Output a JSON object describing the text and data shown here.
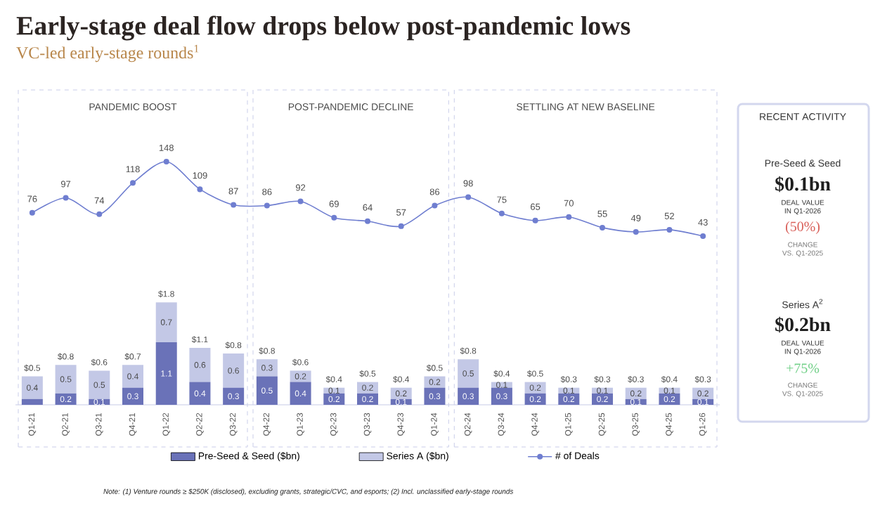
{
  "chart_data": [
    {
      "type": "other",
      "title": "Early-stage deal flow drops below post-pandemic lows",
      "subtitle": "VC-led early-stage rounds$^{1}$"
    },
    {
      "type": "bar",
      "categories": [
        "Q1-21",
        "Q2-21",
        "Q3-21",
        "Q4-21",
        "Q1-22",
        "Q2-22",
        "Q3-22",
        "Q4-22",
        "Q1-23",
        "Q2-23",
        "Q3-23",
        "Q4-23",
        "Q1-24",
        "Q2-24",
        "Q3-24",
        "Q4-24",
        "Q1-25",
        "Q2-25",
        "Q3-25",
        "Q4-25",
        "Q1-26"
      ],
      "stacked": true,
      "series": [
        {
          "name": "Pre-Seed & Seed ($bn)",
          "color": "#6a72b8",
          "values": [
            0.1,
            0.2,
            0.1,
            0.3,
            1.1,
            0.4,
            0.3,
            0.5,
            0.4,
            0.2,
            0.2,
            0.1,
            0.3,
            0.3,
            0.3,
            0.2,
            0.2,
            0.2,
            0.1,
            0.2,
            0.1
          ],
          "value_labels": [
            null,
            "0.2",
            "0.1",
            "0.3",
            "1.1",
            "0.4",
            "0.3",
            "0.5",
            "0.4",
            "0.2",
            "0.2",
            "0.1",
            "0.3",
            "0.3",
            "0.3",
            "0.2",
            "0.2",
            "0.2",
            "0.1",
            "0.2",
            "0.1"
          ]
        },
        {
          "name": "Series A ($bn)",
          "color": "#c3c8e6",
          "values": [
            0.4,
            0.5,
            0.5,
            0.4,
            0.7,
            0.6,
            0.6,
            0.3,
            0.2,
            0.1,
            0.2,
            0.2,
            0.2,
            0.5,
            0.1,
            0.2,
            0.1,
            0.1,
            0.2,
            0.1,
            0.2
          ],
          "value_labels": [
            "0.4",
            "0.5",
            "0.5",
            "0.4",
            "0.7",
            "0.6",
            "0.6",
            "0.3",
            "0.2",
            "0.1",
            "0.2",
            "0.2",
            "0.2",
            "0.5",
            "0.1",
            "0.2",
            "0.1",
            "0.1",
            "0.2",
            "0.1",
            "0.2"
          ]
        }
      ],
      "totals": [
        "$0.5",
        "$0.8",
        "$0.6",
        "$0.7",
        "$1.8",
        "$1.1",
        "$0.8",
        "$0.8",
        "$0.6",
        "$0.4",
        "$0.5",
        "$0.4",
        "$0.5",
        "$0.8",
        "$0.4",
        "$0.5",
        "$0.3",
        "$0.3",
        "$0.3",
        "$0.4",
        "$0.3"
      ],
      "tick_labels": "x",
      "legend": "bottom",
      "annotations": [
        "PANDEMIC BOOST",
        "POST-PANDEMIC DECLINE",
        "SETTLING AT NEW BASELINE",
        "Note: (1) Venture rounds ≥ $250K (disclosed), excluding grants, strategic/CVC, and esports; (2) Incl. unclassified early-stage rounds"
      ]
    },
    {
      "type": "line",
      "categories": [
        null,
        null,
        null,
        null,
        null,
        null,
        null,
        null,
        null,
        null,
        null,
        null,
        null,
        null,
        null,
        null,
        null,
        null,
        null,
        null,
        null
      ],
      "series": [
        {
          "name": "# of Deals",
          "color": "#6f7ed0",
          "values": [
            76,
            97,
            74,
            118,
            148,
            109,
            87,
            86,
            92,
            69,
            64,
            57,
            86,
            98,
            75,
            65,
            70,
            55,
            49,
            52,
            43
          ]
        }
      ],
      "data_labels": true,
      "tick_labels": false,
      "legend": "bottom",
      "marker": "circle",
      "line_style": "solid"
    },
    {
      "type": "other",
      "title": "RECENT ACTIVITY",
      "annotations": [
        "Pre-Seed & Seed",
        "$0.1bn",
        "DEAL VALUE IN Q1-2026",
        "(50%)",
        "CHANGE VS. Q1-2025",
        "Series A$^{2}$",
        "$0.2bn",
        "DEAL VALUE IN Q1-2026",
        "+75%",
        "CHANGE VS. Q1-2025"
      ]
    }
  ]
}
